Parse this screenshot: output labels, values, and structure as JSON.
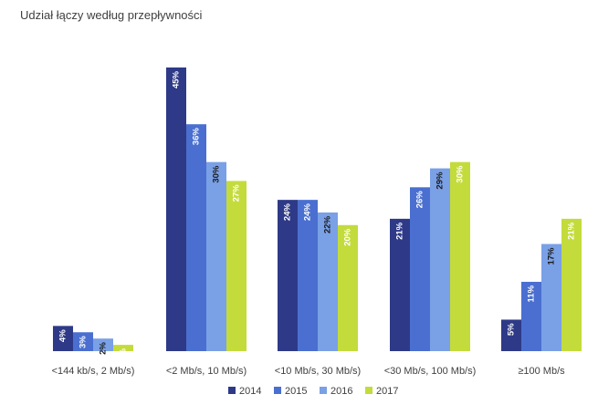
{
  "chart_data": {
    "type": "bar",
    "title": "Udział łączy według przepływności",
    "categories": [
      "<144 kb/s, 2 Mb/s)",
      "<2 Mb/s, 10 Mb/s)",
      "<10 Mb/s, 30 Mb/s)",
      "<30 Mb/s, 100 Mb/s)",
      "≥100 Mb/s"
    ],
    "series": [
      {
        "name": "2014",
        "color": "#2e3a87",
        "label_color": "#ffffff",
        "values": [
          4,
          45,
          24,
          21,
          5
        ]
      },
      {
        "name": "2015",
        "color": "#4a6fd0",
        "label_color": "#ffffff",
        "values": [
          3,
          36,
          24,
          26,
          11
        ]
      },
      {
        "name": "2016",
        "color": "#7aa0e6",
        "label_color": "#1a1a1a",
        "values": [
          2,
          30,
          22,
          29,
          17
        ]
      },
      {
        "name": "2017",
        "color": "#c4db3c",
        "label_color": "#ffffff",
        "values": [
          1,
          27,
          20,
          30,
          21
        ]
      }
    ],
    "value_suffix": "%",
    "xlabel": "",
    "ylabel": "",
    "ylim": [
      0,
      45
    ],
    "grid": false,
    "legend_position": "bottom"
  }
}
